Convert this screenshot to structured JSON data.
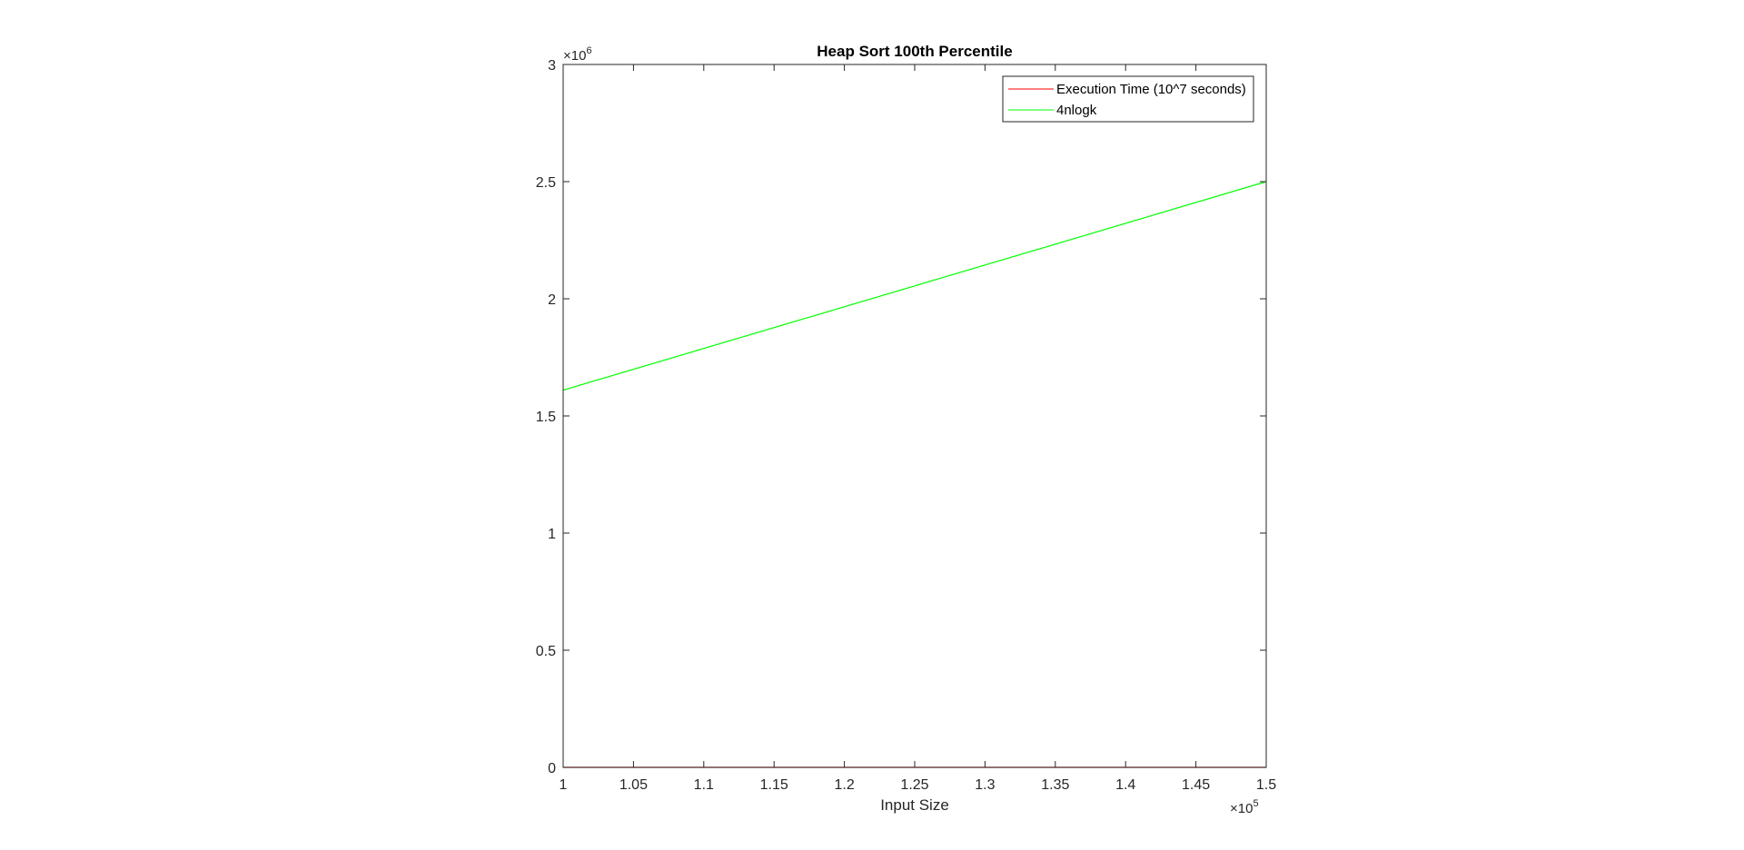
{
  "chart_data": {
    "type": "line",
    "title": "Heap Sort 100th Percentile",
    "xlabel": "Input Size",
    "ylabel": "",
    "xlim": [
      100000,
      150000
    ],
    "ylim": [
      0,
      3000000
    ],
    "x_ticks": [
      "1",
      "1.05",
      "1.1",
      "1.15",
      "1.2",
      "1.25",
      "1.3",
      "1.35",
      "1.4",
      "1.45",
      "1.5"
    ],
    "y_ticks": [
      "0",
      "0.5",
      "1",
      "1.5",
      "2",
      "2.5",
      "3"
    ],
    "x_multiplier": {
      "base": "×10",
      "exponent": "5"
    },
    "y_multiplier": {
      "base": "×10",
      "exponent": "6"
    },
    "grid": false,
    "legend_position": "top-right",
    "series": [
      {
        "name": "Execution Time (10^7 seconds)",
        "color": "#ff0000",
        "x": [
          100000,
          150000
        ],
        "y": [
          0,
          0
        ]
      },
      {
        "name": "4nlogk",
        "color": "#00ff00",
        "x": [
          100000,
          150000
        ],
        "y": [
          1610000,
          2500000
        ]
      }
    ]
  }
}
